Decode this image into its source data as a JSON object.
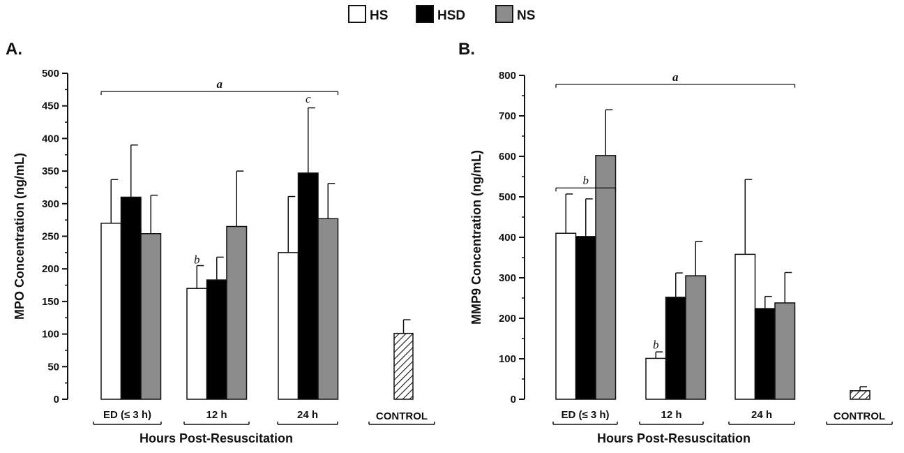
{
  "legend": [
    {
      "label": "HS",
      "color": "#ffffff"
    },
    {
      "label": "HSD",
      "color": "#000000"
    },
    {
      "label": "NS",
      "color": "#8c8c8c"
    }
  ],
  "xlabel": "Hours Post-Resuscitation",
  "chart_data": [
    {
      "type": "bar",
      "panel_label": "A.",
      "ylabel": "MPO Concentration (ng/mL)",
      "ylim": [
        0,
        500
      ],
      "yticks": [
        0,
        50,
        100,
        150,
        200,
        250,
        300,
        350,
        400,
        450,
        500
      ],
      "categories": [
        "ED (≤ 3 h)",
        "12 h",
        "24 h"
      ],
      "series": [
        {
          "name": "HS",
          "color": "#ffffff",
          "values": [
            270,
            170,
            225
          ],
          "errors": [
            67,
            35,
            86
          ]
        },
        {
          "name": "HSD",
          "color": "#000000",
          "values": [
            310,
            183,
            347
          ],
          "errors": [
            80,
            35,
            100
          ]
        },
        {
          "name": "NS",
          "color": "#8c8c8c",
          "values": [
            254,
            265,
            277
          ],
          "errors": [
            59,
            85,
            54
          ]
        }
      ],
      "control": {
        "label": "CONTROL",
        "value": 101,
        "error": 21
      },
      "annotations": [
        {
          "text": "a",
          "type": "bracket",
          "from_group": 0,
          "to_group": 2,
          "y": 472,
          "bold": true
        },
        {
          "text": "c",
          "type": "label",
          "group": 2,
          "series": 1,
          "y": 455
        },
        {
          "text": "b",
          "type": "label",
          "group": 1,
          "series": 0,
          "y": 208
        }
      ]
    },
    {
      "type": "bar",
      "panel_label": "B.",
      "ylabel": "MMP9 Concentration (ng/mL)",
      "ylim": [
        0,
        800
      ],
      "yticks": [
        0,
        100,
        200,
        300,
        400,
        500,
        600,
        700,
        800
      ],
      "categories": [
        "ED (≤ 3 h)",
        "12 h",
        "24 h"
      ],
      "series": [
        {
          "name": "HS",
          "color": "#ffffff",
          "values": [
            410,
            101,
            358
          ],
          "errors": [
            97,
            16,
            185
          ]
        },
        {
          "name": "HSD",
          "color": "#000000",
          "values": [
            402,
            252,
            224
          ],
          "errors": [
            93,
            60,
            30
          ]
        },
        {
          "name": "NS",
          "color": "#8c8c8c",
          "values": [
            602,
            305,
            238
          ],
          "errors": [
            113,
            85,
            75
          ]
        }
      ],
      "control": {
        "label": "CONTROL",
        "value": 21,
        "error": 10
      },
      "annotations": [
        {
          "text": "a",
          "type": "bracket",
          "from_group": 0,
          "to_group": 2,
          "y": 778,
          "bold": true
        },
        {
          "text": "b",
          "type": "bracket",
          "from_group": 0,
          "to_group": 0,
          "y": 522
        },
        {
          "text": "b",
          "type": "label",
          "group": 1,
          "series": 0,
          "y": 125
        }
      ]
    }
  ]
}
